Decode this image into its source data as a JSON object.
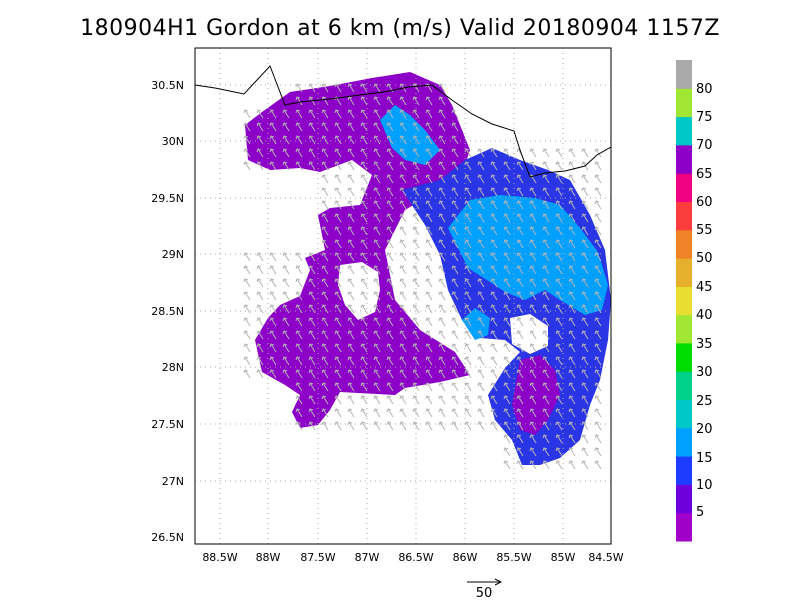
{
  "title": "180904H1 Gordon at 6 km (m/s) Valid 20180904  1157Z",
  "axes": {
    "lat_ticks": [
      "30.5N",
      "30N",
      "29.5N",
      "29N",
      "28.5N",
      "28N",
      "27.5N",
      "27N",
      "26.5N"
    ],
    "lon_ticks": [
      "88.5W",
      "88W",
      "87.5W",
      "87W",
      "86.5W",
      "86W",
      "85.5W",
      "85W",
      "84.5W"
    ]
  },
  "colorbar": {
    "labels": [
      "5",
      "10",
      "15",
      "20",
      "25",
      "30",
      "35",
      "40",
      "45",
      "50",
      "55",
      "60",
      "65",
      "70",
      "75",
      "80"
    ],
    "colors": [
      "#a000c8",
      "#6e00dc",
      "#1e3cff",
      "#00a0ff",
      "#00c8c8",
      "#00d28c",
      "#00dc00",
      "#a0e632",
      "#e6dc32",
      "#e6af2d",
      "#f08228",
      "#fa3c3c",
      "#f00082",
      "#8c00c8",
      "#00c8c8",
      "#a0e632",
      "#aaaaaa"
    ]
  },
  "reference_vector": {
    "label": "50"
  }
}
